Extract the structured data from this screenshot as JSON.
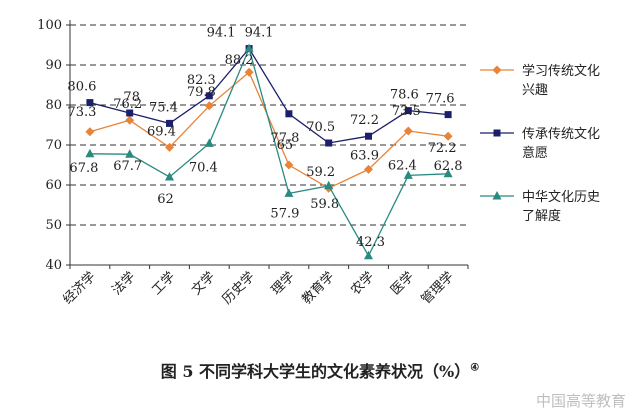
{
  "chart_data": {
    "type": "line",
    "ylim": [
      40,
      100
    ],
    "yticks": [
      40,
      50,
      60,
      70,
      80,
      90,
      100
    ],
    "grid": "dashed horizontal",
    "legend_position": "right",
    "categories": [
      "经济学",
      "法学",
      "工学",
      "文学",
      "历史学",
      "理学",
      "教育学",
      "农学",
      "医学",
      "管理学"
    ],
    "series": [
      {
        "name": "学习传统文化兴趣",
        "legend_lines": [
          "学习传统文化",
          "兴趣"
        ],
        "color": "#e8843a",
        "marker": "diamond",
        "values": [
          73.3,
          76.2,
          69.4,
          79.8,
          88.2,
          65,
          59.2,
          63.9,
          73.5,
          72.2
        ]
      },
      {
        "name": "传承传统文化意愿",
        "legend_lines": [
          "传承传统文化",
          "意愿"
        ],
        "color": "#1c1f6b",
        "marker": "square",
        "values": [
          80.6,
          78,
          75.4,
          82.3,
          94.1,
          77.8,
          70.5,
          72.2,
          78.6,
          77.6
        ]
      },
      {
        "name": "中华文化历史了解度",
        "legend_lines": [
          "中华文化历史",
          "了解度"
        ],
        "color": "#2a8a80",
        "marker": "triangle",
        "values": [
          67.8,
          67.7,
          62,
          70.4,
          94.1,
          57.9,
          59.8,
          42.3,
          62.4,
          62.8
        ]
      }
    ]
  },
  "caption": {
    "text": "图 5   不同学科大学生的文化素养状况（%）",
    "sup": "④"
  },
  "watermark": "中国高等教育"
}
